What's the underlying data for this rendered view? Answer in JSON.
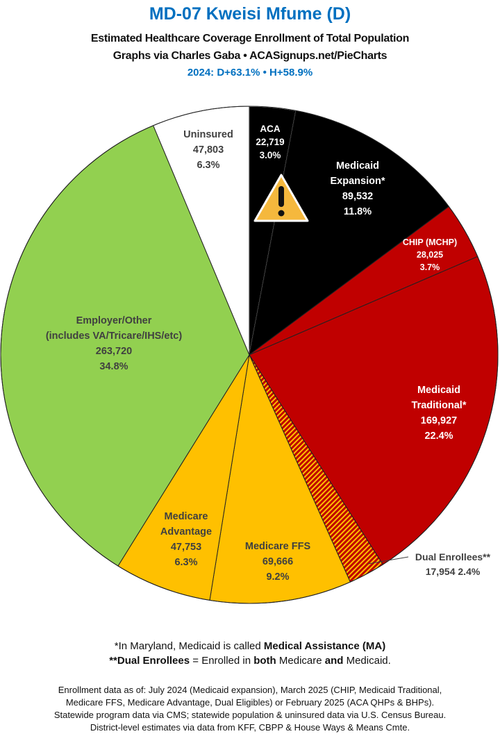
{
  "header": {
    "title": "MD-07 Kweisi Mfume (D)",
    "subtitle": "Estimated Healthcare Coverage Enrollment of Total Population",
    "credit": "Graphs via Charles Gaba  •  ACASignups.net/PieCharts",
    "partisan": "2024: D+63.1%  •  H+58.9%"
  },
  "chart_data": {
    "type": "pie",
    "title": "MD-07 Kweisi Mfume (D)",
    "start": "top, clockwise",
    "slices": [
      {
        "label": "ACA",
        "value": 22719,
        "percent": "3.0%",
        "color": "#000000",
        "pattern": "none"
      },
      {
        "label": "Medicaid Expansion*",
        "value": 89532,
        "percent": "11.8%",
        "color": "#000000",
        "pattern": "none"
      },
      {
        "label": "CHIP (MCHP)",
        "value": 28025,
        "percent": "3.7%",
        "color": "#c00000",
        "pattern": "none"
      },
      {
        "label": "Medicaid Traditional*",
        "value": 169927,
        "percent": "22.4%",
        "color": "#c00000",
        "pattern": "none"
      },
      {
        "label": "Dual Enrollees**",
        "value": 17954,
        "percent": "2.4%",
        "color": "#c00000",
        "pattern": "hatched-yellow"
      },
      {
        "label": "Medicare FFS",
        "value": 69666,
        "percent": "9.2%",
        "color": "#ffc000",
        "pattern": "none"
      },
      {
        "label": "Medicare Advantage",
        "value": 47753,
        "percent": "6.3%",
        "color": "#ffc000",
        "pattern": "none"
      },
      {
        "label": "Employer/Other (includes VA/Tricare/IHS/etc)",
        "value": 263720,
        "percent": "34.8%",
        "color": "#92d050",
        "pattern": "none"
      },
      {
        "label": "Uninsured",
        "value": 47803,
        "percent": "6.3%",
        "color": "#ffffff",
        "pattern": "none"
      }
    ],
    "labels": {
      "aca": [
        "ACA",
        "22,719",
        "3.0%"
      ],
      "exp": [
        "Medicaid",
        "Expansion*",
        "89,532",
        "11.8%"
      ],
      "chip": [
        "CHIP (MCHP)",
        "28,025",
        "3.7%"
      ],
      "trad": [
        "Medicaid",
        "Traditional*",
        "169,927",
        "22.4%"
      ],
      "dual": [
        "Dual Enrollees**",
        "17,954 2.4%"
      ],
      "ffs": [
        "Medicare FFS",
        "69,666",
        "9.2%"
      ],
      "ma": [
        "Medicare",
        "Advantage",
        "47,753",
        "6.3%"
      ],
      "emp": [
        "Employer/Other",
        "(includes VA/Tricare/IHS/etc)",
        "263,720",
        "34.8%"
      ],
      "unins": [
        "Uninsured",
        "47,803",
        "6.3%"
      ]
    },
    "warning_icon": "warning-triangle-icon"
  },
  "notes": {
    "line1_a": "*In Maryland, Medicaid is called ",
    "line1_b": "Medical Assistance (MA)",
    "line2_a": "**Dual Enrollees",
    "line2_b": " = Enrolled in ",
    "line2_c": "both",
    "line2_d": " Medicare ",
    "line2_e": "and",
    "line2_f": " Medicaid.",
    "source": [
      "Enrollment data as of: July 2024 (Medicaid expansion), March 2025 (CHIP, Medicaid Traditional,",
      "Medicare FFS, Medicare Advantage, Dual Eligibles) or February 2025 (ACA QHPs & BHPs).",
      "Statewide program data via CMS; statewide population & uninsured data via U.S. Census Bureau.",
      "District-level estimates via data from KFF, CBPP & House Ways & Means Cmte."
    ]
  }
}
